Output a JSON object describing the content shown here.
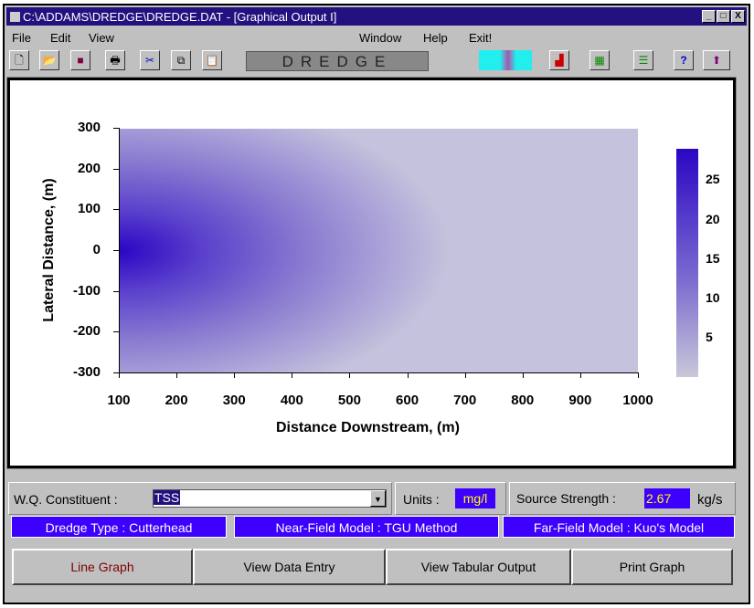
{
  "window": {
    "title": "C:\\ADDAMS\\DREDGE\\DREDGE.DAT - [Graphical Output I]",
    "controls": [
      "_",
      "□",
      "X"
    ]
  },
  "menu": {
    "left": [
      "File",
      "Edit",
      "View"
    ],
    "right": [
      "Window",
      "Help",
      "Exit!"
    ]
  },
  "toolbar": {
    "icons": [
      "new-icon",
      "open-icon",
      "save-icon",
      "print-icon",
      "cut-icon",
      "copy-icon",
      "paste-icon"
    ],
    "logo": "DREDGE",
    "right_icons": [
      "bar-chart-icon",
      "table-icon",
      "list-icon",
      "help-icon",
      "upload-icon"
    ]
  },
  "chart_data": {
    "type": "heatmap",
    "xlabel": "Distance Downstream, (m)",
    "ylabel": "Lateral Distance, (m)",
    "xlim": [
      100,
      1000
    ],
    "ylim": [
      -300,
      300
    ],
    "xticks": [
      "100",
      "200",
      "300",
      "400",
      "500",
      "600",
      "700",
      "800",
      "900",
      "1000"
    ],
    "yticks": [
      "300",
      "200",
      "100",
      "0",
      "-100",
      "-200",
      "-300"
    ],
    "colorbar": {
      "ticks": [
        "25",
        "20",
        "15",
        "10",
        "5"
      ],
      "range": [
        0,
        29
      ],
      "colors": [
        "#c8c8d8",
        "#2a06c4"
      ]
    },
    "source": {
      "x": 100,
      "y": 0
    }
  },
  "controls": {
    "wq_label": "W.Q. Constituent :",
    "wq_value": "TSS",
    "units_label": "Units :",
    "units_value": "mg/l",
    "strength_label": "Source Strength :",
    "strength_value": "2.67",
    "strength_unit": "kg/s"
  },
  "info": {
    "dredge_type": "Dredge Type : Cutterhead",
    "near_field": "Near-Field Model : TGU Method",
    "far_field": "Far-Field Model : Kuo's Model"
  },
  "buttons": {
    "line_graph": "Line Graph",
    "data_entry": "View Data Entry",
    "tabular": "View Tabular Output",
    "print": "Print Graph"
  }
}
